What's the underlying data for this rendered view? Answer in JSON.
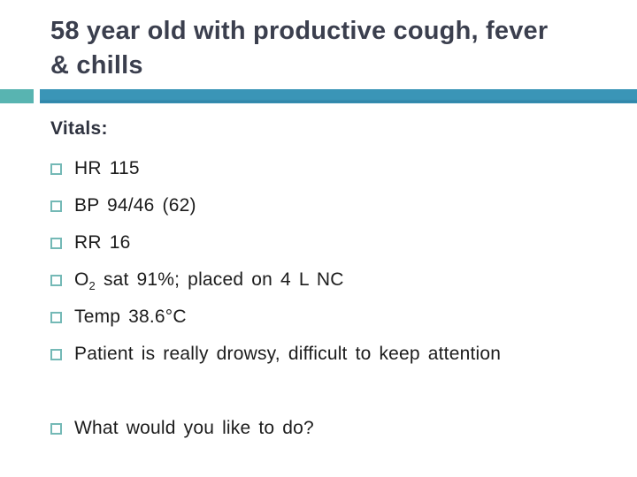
{
  "slide": {
    "title": "58 year old with productive cough, fever\n& chills",
    "section_heading": "Vitals:",
    "bullets": [
      {
        "pre": "HR 115",
        "sub": "",
        "post": ""
      },
      {
        "pre": "BP 94/46 (62)",
        "sub": "",
        "post": ""
      },
      {
        "pre": "RR 16",
        "sub": "",
        "post": ""
      },
      {
        "pre": "O",
        "sub": "2",
        "post": " sat 91%; placed on 4 L NC"
      },
      {
        "pre": "Temp 38.6°C",
        "sub": "",
        "post": ""
      },
      {
        "pre": "Patient is really drowsy, difficult to keep attention",
        "sub": "",
        "post": ""
      }
    ],
    "question": "What would you like to do?",
    "colors": {
      "title_text": "#3b3f4e",
      "body_text": "#1c1c1c",
      "accent_light_teal": "#58b4b1",
      "accent_dark_teal": "#3a95b7",
      "bullet_outline_teal": "#74b9b6"
    }
  }
}
